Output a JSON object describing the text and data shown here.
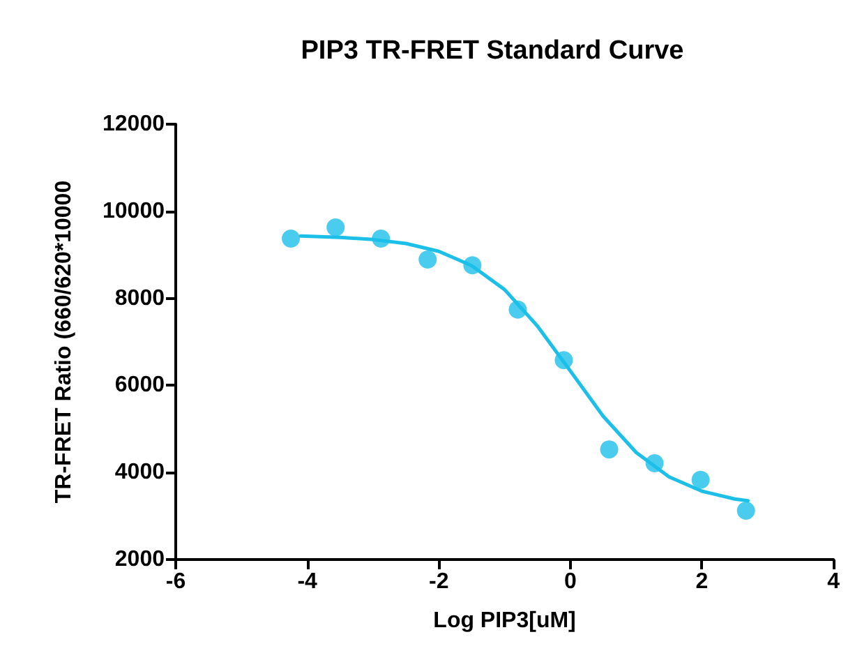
{
  "chart_data": {
    "type": "scatter",
    "title": "PIP3 TR-FRET Standard Curve",
    "xlabel": "Log PIP3[uM]",
    "ylabel": "TR-FRET Ratio (660/620*10000",
    "xlim": [
      -6,
      4
    ],
    "xticks": [
      -6,
      -4,
      -2,
      0,
      2,
      4
    ],
    "ylim": [
      2000,
      12000
    ],
    "yticks": [
      2000,
      4000,
      6000,
      8000,
      10000,
      12000
    ],
    "grid": false,
    "series": [
      {
        "color": "#1cbfe8",
        "marker": "circle",
        "x": [
          -4.25,
          -3.57,
          -2.88,
          -2.17,
          -1.49,
          -0.8,
          -0.1,
          0.59,
          1.28,
          1.98,
          2.67
        ],
        "values": [
          9370,
          9630,
          9370,
          8890,
          8760,
          7740,
          6580,
          4530,
          4210,
          3830,
          3120
        ]
      },
      {
        "type": "line",
        "color": "#1cbfe8",
        "marker": "none",
        "line_style": "solid",
        "x": [
          -4.1,
          -3.5,
          -3,
          -2.5,
          -2,
          -1.5,
          -1,
          -0.5,
          0,
          0.5,
          1,
          1.5,
          2,
          2.5,
          2.7
        ],
        "values": [
          9430,
          9400,
          9350,
          9260,
          9080,
          8750,
          8200,
          7360,
          6330,
          5290,
          4460,
          3900,
          3570,
          3390,
          3350
        ]
      }
    ]
  }
}
